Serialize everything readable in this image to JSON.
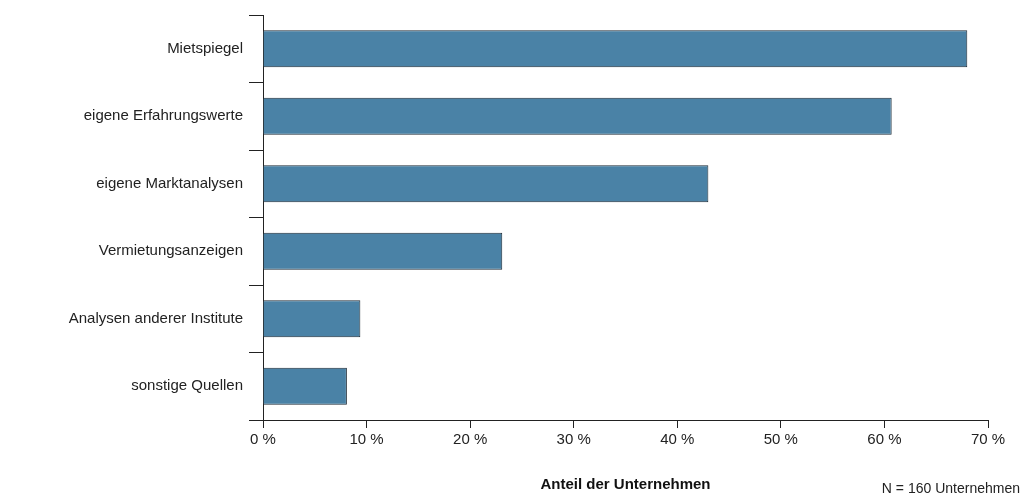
{
  "chart_data": {
    "type": "bar",
    "orientation": "horizontal",
    "xlabel": "Anteil der Unternehmen",
    "categories": [
      "Mietspiegel",
      "eigene Erfahrungswerte",
      "eigene Marktanalysen",
      "Vermietungsanzeigen",
      "Analysen anderer Institute",
      "sonstige Quellen"
    ],
    "values": [
      68,
      60.7,
      43,
      23.1,
      9.4,
      8.1
    ],
    "color": "#4a82a6",
    "xlim": [
      0,
      70
    ],
    "xticks": [
      {
        "value": 0,
        "label": "0 %"
      },
      {
        "value": 10,
        "label": "10 %"
      },
      {
        "value": 20,
        "label": "20 %"
      },
      {
        "value": 30,
        "label": "30 %"
      },
      {
        "value": 40,
        "label": "40 %"
      },
      {
        "value": 50,
        "label": "50 %"
      },
      {
        "value": 60,
        "label": "60 %"
      },
      {
        "value": 70,
        "label": "70 %"
      }
    ],
    "grid": false,
    "legend": false,
    "annotations": [
      "N = 160 Unternehmen"
    ]
  }
}
